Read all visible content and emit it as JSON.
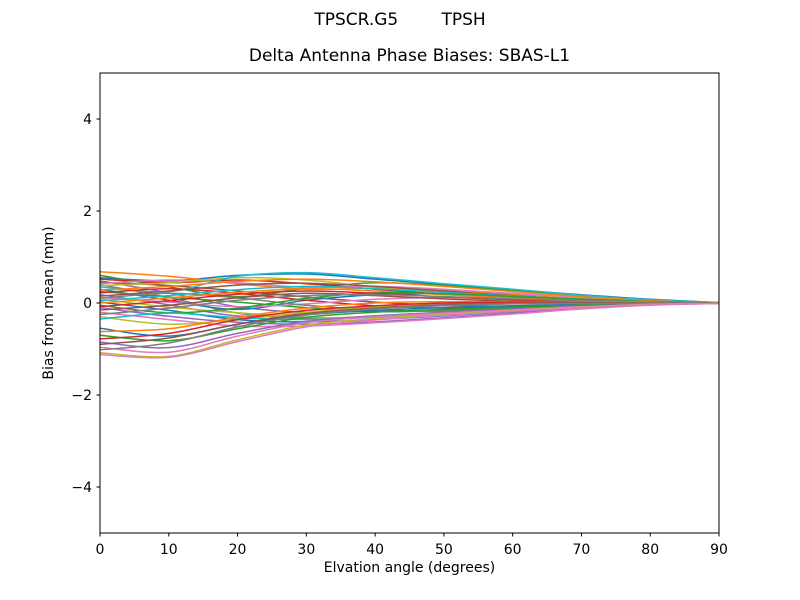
{
  "colors": {
    "background": "#ffffff",
    "axis": "#000000",
    "text": "#000000"
  },
  "chart_data": {
    "type": "line",
    "title": "TPSCR.G5        TPSH",
    "subtitle": "Delta Antenna Phase Biases: SBAS-L1",
    "xlabel": "Elvation angle (degrees)",
    "ylabel": "Bias from mean (mm)",
    "xlim": [
      0,
      90
    ],
    "ylim": [
      -5,
      5
    ],
    "xticks": [
      0,
      10,
      20,
      30,
      40,
      50,
      60,
      70,
      80,
      90
    ],
    "yticks": [
      -4,
      -2,
      0,
      2,
      4
    ],
    "grid": false,
    "legend": "none",
    "x": [
      0,
      10,
      20,
      30,
      40,
      50,
      60,
      70,
      80,
      90
    ],
    "series": [
      {
        "color": "#1f77b4",
        "values": [
          0.55,
          0.48,
          0.6,
          0.63,
          0.52,
          0.4,
          0.29,
          0.18,
          0.08,
          0.01
        ]
      },
      {
        "color": "#ff7f0e",
        "values": [
          0.68,
          0.58,
          0.42,
          0.3,
          0.32,
          0.27,
          0.19,
          0.11,
          0.04,
          0.0
        ]
      },
      {
        "color": "#2ca02c",
        "values": [
          0.6,
          0.35,
          0.14,
          0.32,
          0.44,
          0.38,
          0.27,
          0.15,
          0.06,
          0.01
        ]
      },
      {
        "color": "#d62728",
        "values": [
          0.52,
          0.44,
          0.5,
          0.42,
          0.3,
          0.19,
          0.11,
          0.05,
          0.02,
          0.0
        ]
      },
      {
        "color": "#9467bd",
        "values": [
          0.48,
          0.22,
          -0.08,
          -0.2,
          -0.11,
          -0.02,
          0.04,
          0.04,
          0.02,
          0.0
        ]
      },
      {
        "color": "#8c564b",
        "values": [
          0.45,
          0.38,
          0.26,
          0.13,
          0.02,
          -0.05,
          -0.07,
          -0.05,
          -0.02,
          0.0
        ]
      },
      {
        "color": "#e377c2",
        "values": [
          0.42,
          0.5,
          0.44,
          0.34,
          0.36,
          0.3,
          0.21,
          0.12,
          0.05,
          0.01
        ]
      },
      {
        "color": "#7f7f7f",
        "values": [
          0.4,
          0.12,
          -0.22,
          -0.34,
          -0.28,
          -0.2,
          -0.13,
          -0.07,
          -0.02,
          0.0
        ]
      },
      {
        "color": "#bcbd22",
        "values": [
          0.38,
          0.44,
          0.55,
          0.5,
          0.35,
          0.24,
          0.16,
          0.09,
          0.03,
          0.0
        ]
      },
      {
        "color": "#17becf",
        "values": [
          0.35,
          0.25,
          0.58,
          0.66,
          0.55,
          0.42,
          0.3,
          0.17,
          0.07,
          0.01
        ]
      },
      {
        "color": "#1f77b4",
        "values": [
          0.3,
          0.06,
          -0.14,
          0.06,
          0.18,
          0.2,
          0.15,
          0.08,
          0.03,
          0.0
        ]
      },
      {
        "color": "#ff7f0e",
        "values": [
          0.28,
          0.36,
          0.47,
          0.52,
          0.46,
          0.36,
          0.25,
          0.14,
          0.05,
          0.01
        ]
      },
      {
        "color": "#2ca02c",
        "values": [
          0.25,
          0.13,
          0.02,
          -0.1,
          -0.19,
          -0.16,
          -0.11,
          -0.06,
          -0.02,
          0.0
        ]
      },
      {
        "color": "#d62728",
        "values": [
          0.22,
          0.31,
          0.21,
          0.06,
          -0.06,
          -0.11,
          -0.09,
          -0.05,
          -0.02,
          0.0
        ]
      },
      {
        "color": "#9467bd",
        "values": [
          0.18,
          -0.04,
          -0.28,
          -0.24,
          -0.12,
          -0.04,
          0.01,
          0.02,
          0.01,
          0.0
        ]
      },
      {
        "color": "#8c564b",
        "values": [
          0.15,
          0.26,
          0.39,
          0.43,
          0.36,
          0.26,
          0.16,
          0.08,
          0.03,
          0.0
        ]
      },
      {
        "color": "#e377c2",
        "values": [
          0.12,
          0.02,
          -0.08,
          -0.02,
          0.08,
          0.12,
          0.1,
          0.06,
          0.02,
          0.0
        ]
      },
      {
        "color": "#7f7f7f",
        "values": [
          0.1,
          0.21,
          0.11,
          -0.05,
          -0.15,
          -0.18,
          -0.14,
          -0.08,
          -0.03,
          0.0
        ]
      },
      {
        "color": "#bcbd22",
        "values": [
          0.08,
          -0.09,
          -0.21,
          -0.31,
          -0.31,
          -0.26,
          -0.18,
          -0.1,
          -0.04,
          0.0
        ]
      },
      {
        "color": "#17becf",
        "values": [
          0.05,
          0.16,
          0.29,
          0.36,
          0.31,
          0.23,
          0.15,
          0.08,
          0.03,
          0.0
        ]
      },
      {
        "color": "#1f77b4",
        "values": [
          0.02,
          -0.16,
          -0.36,
          -0.41,
          -0.36,
          -0.28,
          -0.19,
          -0.1,
          -0.04,
          0.0
        ]
      },
      {
        "color": "#ff7f0e",
        "values": [
          0.0,
          0.11,
          0.23,
          0.31,
          0.26,
          0.18,
          0.11,
          0.05,
          0.02,
          0.0
        ]
      },
      {
        "color": "#2ca02c",
        "values": [
          -0.05,
          -0.21,
          -0.11,
          0.1,
          0.22,
          0.2,
          0.14,
          0.08,
          0.03,
          0.0
        ]
      },
      {
        "color": "#d62728",
        "values": [
          -0.08,
          0.05,
          0.19,
          0.26,
          0.21,
          0.13,
          0.07,
          0.03,
          0.01,
          0.0
        ]
      },
      {
        "color": "#9467bd",
        "values": [
          -0.1,
          -0.29,
          -0.42,
          -0.46,
          -0.41,
          -0.32,
          -0.22,
          -0.12,
          -0.04,
          0.0
        ]
      },
      {
        "color": "#8c564b",
        "values": [
          -0.15,
          -0.05,
          0.11,
          0.21,
          0.16,
          0.09,
          0.04,
          0.01,
          0.0,
          0.0
        ]
      },
      {
        "color": "#e377c2",
        "values": [
          -0.2,
          -0.36,
          -0.5,
          -0.5,
          -0.43,
          -0.34,
          -0.24,
          -0.13,
          -0.05,
          -0.01
        ]
      },
      {
        "color": "#7f7f7f",
        "values": [
          -0.25,
          -0.11,
          0.06,
          0.16,
          0.18,
          0.14,
          0.09,
          0.05,
          0.02,
          0.0
        ]
      },
      {
        "color": "#bcbd22",
        "values": [
          -0.3,
          -0.46,
          -0.36,
          -0.2,
          -0.08,
          0.0,
          0.02,
          0.02,
          0.01,
          0.0
        ]
      },
      {
        "color": "#17becf",
        "values": [
          -0.35,
          -0.22,
          -0.32,
          -0.36,
          -0.31,
          -0.23,
          -0.15,
          -0.08,
          -0.03,
          0.0
        ]
      },
      {
        "color": "#1f77b4",
        "values": [
          -0.55,
          -0.72,
          -0.46,
          -0.26,
          -0.16,
          -0.1,
          -0.06,
          -0.03,
          -0.01,
          0.0
        ]
      },
      {
        "color": "#ff7f0e",
        "values": [
          -0.62,
          -0.56,
          -0.31,
          -0.11,
          0.0,
          0.03,
          0.03,
          0.02,
          0.01,
          0.0
        ]
      },
      {
        "color": "#2ca02c",
        "values": [
          -0.7,
          -0.82,
          -0.56,
          -0.31,
          -0.2,
          -0.14,
          -0.09,
          -0.05,
          -0.02,
          0.0
        ]
      },
      {
        "color": "#d62728",
        "values": [
          -0.78,
          -0.66,
          -0.36,
          -0.16,
          -0.06,
          0.0,
          0.02,
          0.01,
          0.0,
          0.0
        ]
      },
      {
        "color": "#9467bd",
        "values": [
          -0.85,
          -0.97,
          -0.66,
          -0.4,
          -0.28,
          -0.2,
          -0.13,
          -0.07,
          -0.02,
          0.0
        ]
      },
      {
        "color": "#8c564b",
        "values": [
          -0.9,
          -0.76,
          -0.46,
          -0.23,
          -0.11,
          -0.05,
          -0.01,
          0.0,
          0.0,
          0.0
        ]
      },
      {
        "color": "#e377c2",
        "values": [
          -0.96,
          -1.07,
          -0.72,
          -0.43,
          -0.3,
          -0.22,
          -0.15,
          -0.08,
          -0.03,
          0.0
        ]
      },
      {
        "color": "#7f7f7f",
        "values": [
          -1.02,
          -0.87,
          -0.52,
          -0.26,
          -0.13,
          -0.06,
          -0.02,
          -0.01,
          0.0,
          0.0
        ]
      },
      {
        "color": "#bcbd22",
        "values": [
          -1.08,
          -1.16,
          -0.8,
          -0.48,
          -0.34,
          -0.25,
          -0.17,
          -0.09,
          -0.03,
          -0.01
        ]
      },
      {
        "color": "#e377c2",
        "values": [
          -1.12,
          -1.18,
          -0.84,
          -0.52,
          -0.37,
          -0.27,
          -0.18,
          -0.1,
          -0.04,
          -0.01
        ]
      }
    ]
  }
}
